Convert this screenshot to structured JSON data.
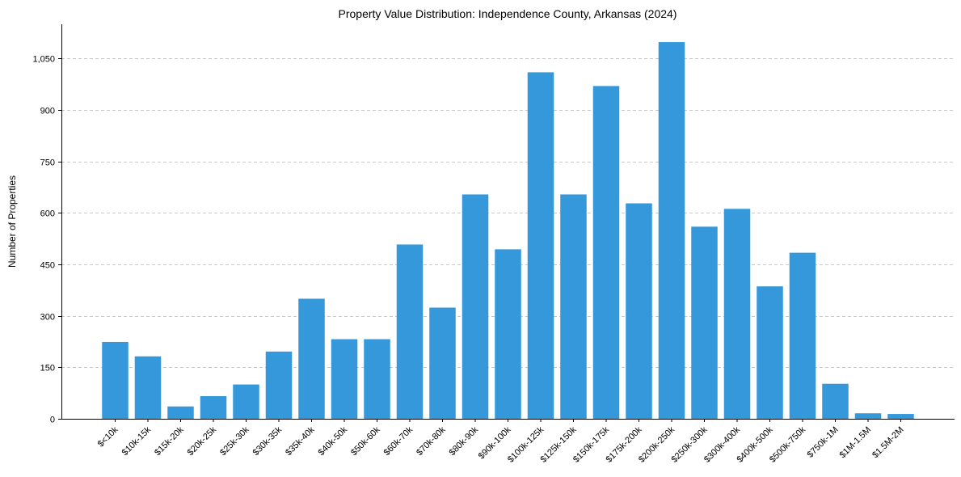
{
  "chart_data": {
    "type": "bar",
    "title": "Property Value Distribution: Independence County, Arkansas (2024)",
    "xlabel": "",
    "ylabel": "Number of Properties",
    "categories": [
      "$<10k",
      "$10k-15k",
      "$15k-20k",
      "$20k-25k",
      "$25k-30k",
      "$30k-35k",
      "$35k-40k",
      "$40k-50k",
      "$50k-60k",
      "$60k-70k",
      "$70k-80k",
      "$80k-90k",
      "$90k-100k",
      "$100k-125k",
      "$125k-150k",
      "$150k-175k",
      "$175k-200k",
      "$200k-250k",
      "$250k-300k",
      "$300k-400k",
      "$400k-500k",
      "$500k-750k",
      "$750k-1M",
      "$1M-1.5M",
      "$1.5M-2M"
    ],
    "values": [
      224,
      182,
      36,
      66,
      100,
      196,
      350,
      232,
      232,
      508,
      324,
      654,
      494,
      1010,
      654,
      970,
      628,
      1098,
      560,
      612,
      386,
      484,
      102,
      16,
      14
    ],
    "ylim": [
      0,
      1150
    ],
    "yticks": [
      0,
      150,
      300,
      450,
      600,
      750,
      900,
      1050
    ],
    "ytick_labels": [
      "0",
      "150",
      "300",
      "450",
      "600",
      "750",
      "900",
      "1,050"
    ],
    "grid": "y",
    "bar_color": "#3498db"
  }
}
